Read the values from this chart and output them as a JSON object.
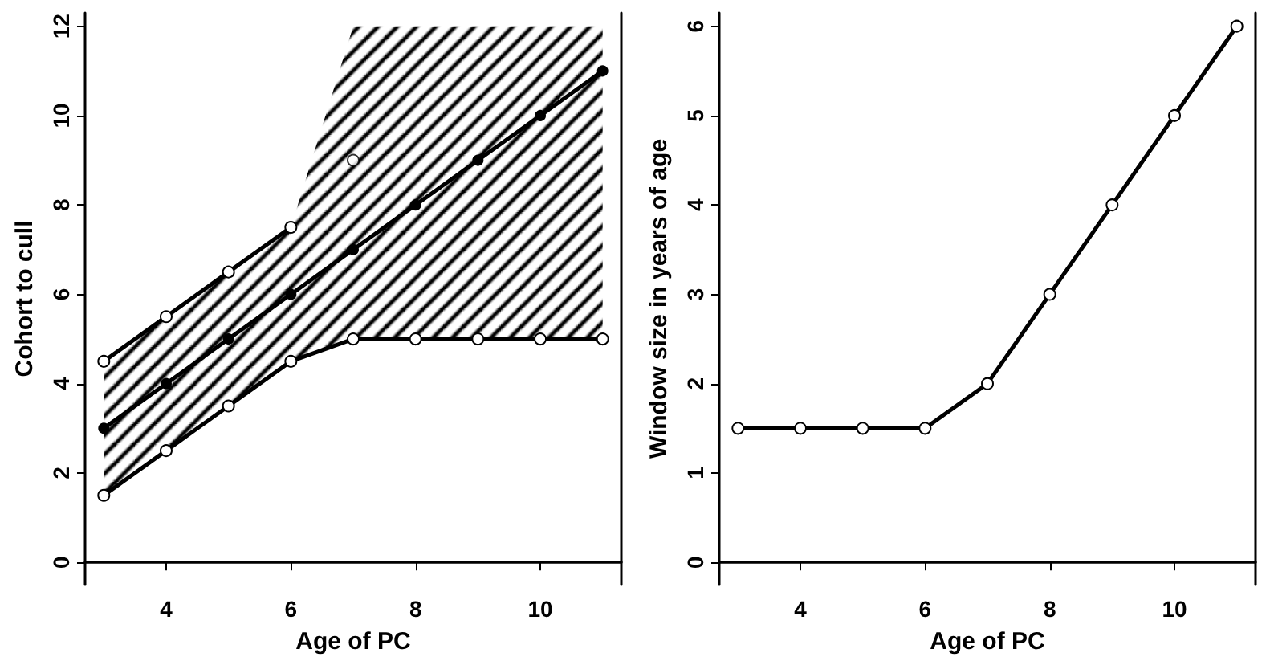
{
  "chart_data": [
    {
      "type": "line",
      "xlabel": "Age of PC",
      "ylabel": "Cohort to cull",
      "x": [
        3,
        4,
        5,
        6,
        7,
        8,
        9,
        10,
        11
      ],
      "xlim": [
        2.7,
        11.3
      ],
      "xticks": [
        4,
        6,
        8,
        10
      ],
      "ylim": [
        -0.5,
        12.3
      ],
      "yticks": [
        0,
        2,
        4,
        6,
        8,
        10,
        12
      ],
      "grid": false,
      "marker": "circle",
      "line_style": "solid",
      "series": [
        {
          "color": "#000000",
          "values": [
            3,
            4,
            5,
            6,
            7,
            8,
            9,
            10,
            11
          ],
          "lower": [
            1.5,
            2.5,
            3.5,
            4.5,
            5,
            5,
            5,
            5,
            5
          ],
          "upper": [
            4.5,
            5.5,
            6.5,
            7.5,
            12,
            12,
            12,
            12,
            12
          ]
        },
        {
          "color": "#000000",
          "values": [
            1.5,
            2.5,
            3.5,
            4.5,
            5,
            5,
            5,
            5,
            5
          ]
        },
        {
          "color": "#000000",
          "values": [
            4.5,
            5.5,
            6.5,
            7.5,
            null,
            null,
            null,
            null,
            null
          ]
        },
        {
          "type": "scatter",
          "color": "#000000",
          "x": [
            7
          ],
          "values": [
            9
          ]
        }
      ]
    },
    {
      "type": "line",
      "xlabel": "Age of PC",
      "ylabel": "Window size in years of age",
      "x": [
        3,
        4,
        5,
        6,
        7,
        8,
        9,
        10,
        11
      ],
      "xlim": [
        2.7,
        11.3
      ],
      "xticks": [
        4,
        6,
        8,
        10
      ],
      "ylim": [
        -0.25,
        6.15
      ],
      "yticks": [
        0,
        1,
        2,
        3,
        4,
        5,
        6
      ],
      "grid": false,
      "marker": "circle",
      "line_style": "solid",
      "series": [
        {
          "color": "#000000",
          "values": [
            1.5,
            1.5,
            1.5,
            1.5,
            2,
            3,
            4,
            5,
            6
          ]
        }
      ]
    }
  ]
}
